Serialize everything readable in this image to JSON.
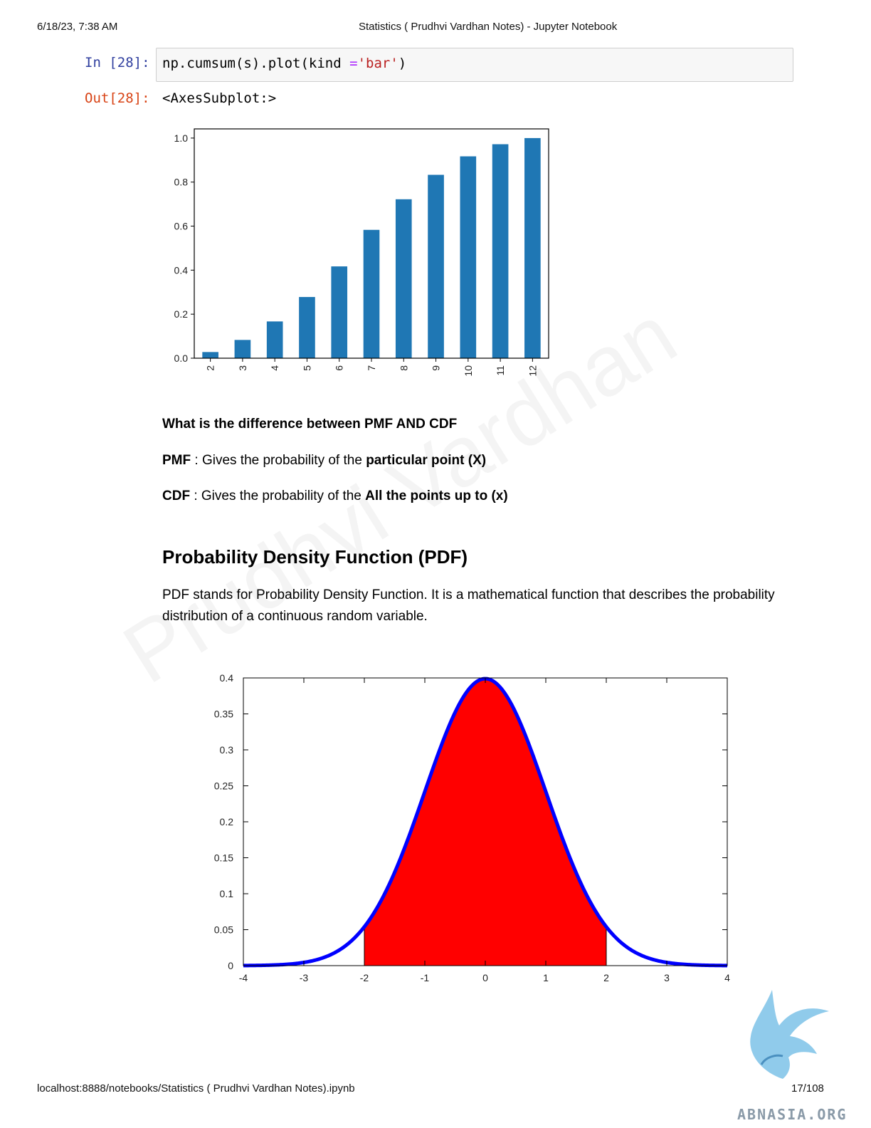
{
  "header": {
    "datetime": "6/18/23, 7:38 AM",
    "title": "Statistics ( Prudhvi Vardhan Notes) - Jupyter Notebook"
  },
  "cell": {
    "in_prompt": "In [28]:",
    "out_prompt": "Out[28]:",
    "code_part1": "np.cumsum(s).plot(kind ",
    "code_op": "=",
    "code_str": "'bar'",
    "code_part2": ")",
    "output_text": "<AxesSubplot:>"
  },
  "bar_chart": {
    "chart_data": {
      "type": "bar",
      "categories": [
        "2",
        "3",
        "4",
        "5",
        "6",
        "7",
        "8",
        "9",
        "10",
        "11",
        "12"
      ],
      "values": [
        0.028,
        0.083,
        0.167,
        0.278,
        0.417,
        0.583,
        0.722,
        0.833,
        0.917,
        0.972,
        1.0
      ],
      "title": "",
      "xlabel": "",
      "ylabel": "",
      "ylim": [
        0,
        1.0
      ],
      "yticks": [
        "0.0",
        "0.2",
        "0.4",
        "0.6",
        "0.8",
        "1.0"
      ],
      "bar_color": "#1f77b4"
    }
  },
  "markdown": {
    "question": "What is the difference between PMF AND CDF",
    "pmf_label": "PMF",
    "pmf_text": " : Gives the probability of the ",
    "pmf_bold": "particular point (X)",
    "cdf_label": "CDF",
    "cdf_text": " : Gives the probability of the ",
    "cdf_bold": "All the points up to (x)",
    "heading": "Probability Density Function (PDF)",
    "paragraph": "PDF stands for Probability Density Function. It is a mathematical function that describes the probability distribution of a continuous random variable."
  },
  "pdf_chart": {
    "chart_data": {
      "type": "area",
      "title": "",
      "xlabel": "",
      "ylabel": "",
      "xlim": [
        -4,
        4
      ],
      "ylim": [
        0,
        0.4
      ],
      "xticks": [
        "-4",
        "-3",
        "-2",
        "-1",
        "0",
        "1",
        "2",
        "3",
        "4"
      ],
      "yticks": [
        "0",
        "0.05",
        "0.1",
        "0.15",
        "0.2",
        "0.25",
        "0.3",
        "0.35",
        "0.4"
      ],
      "curve": "standard normal density",
      "mean": 0,
      "std": 1,
      "shaded_range": [
        -2,
        2
      ],
      "curve_color": "#0000ff",
      "fill_color": "#ff0000"
    }
  },
  "watermark": "Prudhvi Vardhan",
  "footer": {
    "url": "localhost:8888/notebooks/Statistics ( Prudhvi Vardhan Notes).ipynb",
    "page": "17/108"
  },
  "logo_text": "ABNASIA.ORG"
}
